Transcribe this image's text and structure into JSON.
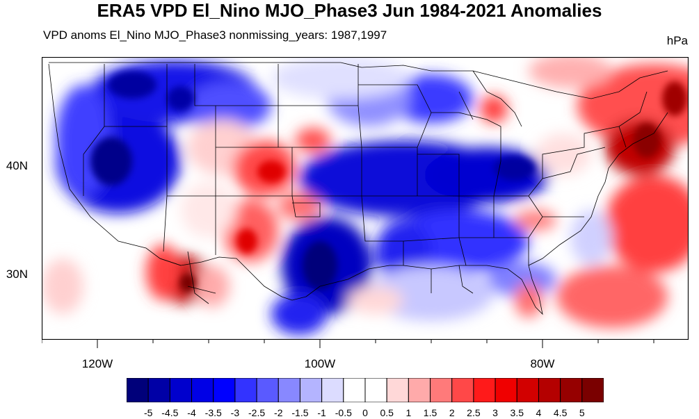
{
  "title": "ERA5 VPD El_Nino MJO_Phase3 Jun 1984-2021 Anomalies",
  "subtitle": "VPD anoms El_Nino MJO_Phase3 nonmissing_years: 1987,1997",
  "units": "hPa",
  "axes": {
    "lat_ticks": [
      "40N",
      "30N"
    ],
    "lon_ticks": [
      "120W",
      "100W",
      "80W"
    ]
  },
  "colorbar": {
    "colors": [
      "#00007a",
      "#0000a6",
      "#0000cd",
      "#0000e6",
      "#0000ff",
      "#3333ff",
      "#5a5aff",
      "#8888ff",
      "#b4b4ff",
      "#dcdcff",
      "#ffffff",
      "#ffffff",
      "#ffd8d8",
      "#ffaaaa",
      "#ff7a7a",
      "#ff4848",
      "#ff1a1a",
      "#f00000",
      "#d20000",
      "#b40000",
      "#960000",
      "#7a0000"
    ],
    "labels": [
      "-5",
      "-4.5",
      "-4",
      "-3.5",
      "-3",
      "-2.5",
      "-2",
      "-1.5",
      "-1",
      "-0.5",
      "0",
      "0.5",
      "1",
      "1.5",
      "2",
      "2.5",
      "3",
      "3.5",
      "4",
      "4.5",
      "5"
    ]
  }
}
